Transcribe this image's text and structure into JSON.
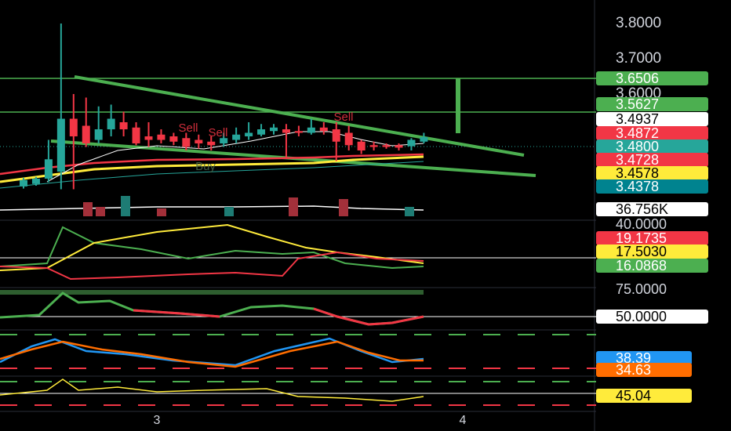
{
  "price_axis": {
    "ticks": [
      {
        "value": 3.8,
        "label": "3.8000"
      },
      {
        "value": 3.7,
        "label": "3.7000"
      },
      {
        "value": 3.6,
        "label": "3.6000"
      }
    ]
  },
  "badges": [
    {
      "label": "3.6506",
      "color": "#4caf50",
      "text_color": "#ffffff"
    },
    {
      "label": "3.5627",
      "color": "#4caf50",
      "text_color": "#ffffff"
    },
    {
      "label": "3.4937",
      "color": "#ffffff",
      "text_color": "#000000"
    },
    {
      "label": "3.4872",
      "color": "#f23645",
      "text_color": "#ffffff"
    },
    {
      "label": "3.4800",
      "color": "#26a69a",
      "text_color": "#ffffff"
    },
    {
      "label": "3.4728",
      "color": "#f23645",
      "text_color": "#ffffff"
    },
    {
      "label": "3.4578",
      "color": "#ffeb3b",
      "text_color": "#000000"
    },
    {
      "label": "3.4378",
      "color": "#00838f",
      "text_color": "#ffffff"
    },
    {
      "label": "36.756K",
      "color": "#ffffff",
      "text_color": "#000000"
    },
    {
      "label": "40.0000",
      "color": "#000000",
      "text_color": "#d1d4dc"
    },
    {
      "label": "19.1735",
      "color": "#f23645",
      "text_color": "#ffffff"
    },
    {
      "label": "17.5030",
      "color": "#ffeb3b",
      "text_color": "#000000"
    },
    {
      "label": "16.0868",
      "color": "#4caf50",
      "text_color": "#ffffff"
    },
    {
      "label": "75.0000",
      "color": "#000000",
      "text_color": "#d1d4dc"
    },
    {
      "label": "50.0000",
      "color": "#ffffff",
      "text_color": "#000000"
    },
    {
      "label": "38.39",
      "color": "#2196f3",
      "text_color": "#ffffff"
    },
    {
      "label": "34.63",
      "color": "#ff6d00",
      "text_color": "#ffffff"
    },
    {
      "label": "45.04",
      "color": "#ffeb3b",
      "text_color": "#000000"
    }
  ],
  "time_axis": [
    "3",
    "4"
  ],
  "annotations": [
    {
      "text": "Sell"
    },
    {
      "text": "Sell"
    },
    {
      "text": "Sell"
    },
    {
      "text": "Buy"
    }
  ],
  "candles": [
    {
      "open": 3.338,
      "high": 3.362,
      "low": 3.332,
      "close": 3.356
    },
    {
      "open": 3.345,
      "high": 3.365,
      "low": 3.34,
      "close": 3.36
    },
    {
      "open": 3.36,
      "high": 3.47,
      "low": 3.35,
      "close": 3.415
    },
    {
      "open": 3.38,
      "high": 3.8,
      "low": 3.33,
      "close": 3.53
    },
    {
      "open": 3.53,
      "high": 3.6,
      "low": 3.33,
      "close": 3.48
    },
    {
      "open": 3.51,
      "high": 3.59,
      "low": 3.45,
      "close": 3.46
    },
    {
      "open": 3.47,
      "high": 3.565,
      "low": 3.46,
      "close": 3.5
    },
    {
      "open": 3.5,
      "high": 3.57,
      "low": 3.48,
      "close": 3.53
    },
    {
      "open": 3.52,
      "high": 3.55,
      "low": 3.48,
      "close": 3.5
    },
    {
      "open": 3.505,
      "high": 3.52,
      "low": 3.455,
      "close": 3.46
    },
    {
      "open": 3.48,
      "high": 3.52,
      "low": 3.45,
      "close": 3.47
    },
    {
      "open": 3.485,
      "high": 3.5,
      "low": 3.46,
      "close": 3.47
    },
    {
      "open": 3.48,
      "high": 3.49,
      "low": 3.455,
      "close": 3.465
    },
    {
      "open": 3.475,
      "high": 3.49,
      "low": 3.44,
      "close": 3.45
    },
    {
      "open": 3.47,
      "high": 3.485,
      "low": 3.445,
      "close": 3.46
    },
    {
      "open": 3.465,
      "high": 3.48,
      "low": 3.44,
      "close": 3.455
    },
    {
      "open": 3.46,
      "high": 3.49,
      "low": 3.45,
      "close": 3.475
    },
    {
      "open": 3.47,
      "high": 3.505,
      "low": 3.46,
      "close": 3.485
    },
    {
      "open": 3.48,
      "high": 3.52,
      "low": 3.47,
      "close": 3.49
    },
    {
      "open": 3.485,
      "high": 3.515,
      "low": 3.48,
      "close": 3.5
    },
    {
      "open": 3.495,
      "high": 3.515,
      "low": 3.485,
      "close": 3.505
    },
    {
      "open": 3.5,
      "high": 3.515,
      "low": 3.42,
      "close": 3.49
    },
    {
      "open": 3.495,
      "high": 3.51,
      "low": 3.48,
      "close": 3.49
    },
    {
      "open": 3.49,
      "high": 3.53,
      "low": 3.485,
      "close": 3.505
    },
    {
      "open": 3.505,
      "high": 3.52,
      "low": 3.485,
      "close": 3.495
    },
    {
      "open": 3.5,
      "high": 3.52,
      "low": 3.41,
      "close": 3.465
    },
    {
      "open": 3.49,
      "high": 3.51,
      "low": 3.44,
      "close": 3.455
    },
    {
      "open": 3.465,
      "high": 3.47,
      "low": 3.43,
      "close": 3.44
    },
    {
      "open": 3.455,
      "high": 3.465,
      "low": 3.44,
      "close": 3.45
    },
    {
      "open": 3.455,
      "high": 3.46,
      "low": 3.445,
      "close": 3.45
    },
    {
      "open": 3.455,
      "high": 3.46,
      "low": 3.44,
      "close": 3.448
    },
    {
      "open": 3.452,
      "high": 3.475,
      "low": 3.44,
      "close": 3.47
    },
    {
      "open": 3.465,
      "high": 3.49,
      "low": 3.46,
      "close": 3.478
    }
  ]
}
